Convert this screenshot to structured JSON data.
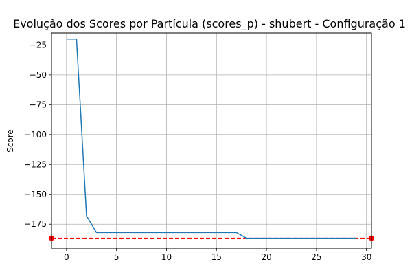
{
  "chart_data": {
    "type": "line",
    "title": "Evolução dos Scores por Partícula (scores_p) - shubert - Configuração 1",
    "xlabel": "",
    "ylabel": "Score",
    "xlim": [
      -1.5,
      30.5
    ],
    "ylim": [
      -195,
      -15
    ],
    "grid": true,
    "xticks": [
      0,
      5,
      10,
      15,
      20,
      25,
      30
    ],
    "yticks": [
      -25,
      -50,
      -75,
      -100,
      -125,
      -150,
      -175
    ],
    "xtick_labels": [
      "0",
      "5",
      "10",
      "15",
      "20",
      "25",
      "30"
    ],
    "ytick_labels": [
      "−25",
      "−50",
      "−75",
      "−100",
      "−125",
      "−150",
      "−175"
    ],
    "series": [
      {
        "color": "#1f77b4",
        "x": [
          0,
          1,
          2,
          3,
          4,
          5,
          6,
          7,
          8,
          9,
          10,
          11,
          12,
          13,
          14,
          15,
          16,
          17,
          18,
          19,
          20,
          21,
          22,
          23,
          24,
          25,
          26,
          27,
          28,
          29
        ],
        "y": [
          -20,
          -20,
          -168,
          -182,
          -182,
          -182,
          -182,
          -182,
          -182,
          -182,
          -182,
          -182,
          -182,
          -182,
          -182,
          -182,
          -182,
          -182,
          -186.7,
          -186.7,
          -186.7,
          -186.7,
          -186.7,
          -186.7,
          -186.7,
          -186.7,
          -186.7,
          -186.7,
          -186.7,
          -186.7
        ]
      }
    ],
    "reference_line": {
      "y": -186.7,
      "color": "#ff0000",
      "style": "dashed",
      "endpoint_markers": [
        -1.5,
        30.5
      ]
    }
  }
}
